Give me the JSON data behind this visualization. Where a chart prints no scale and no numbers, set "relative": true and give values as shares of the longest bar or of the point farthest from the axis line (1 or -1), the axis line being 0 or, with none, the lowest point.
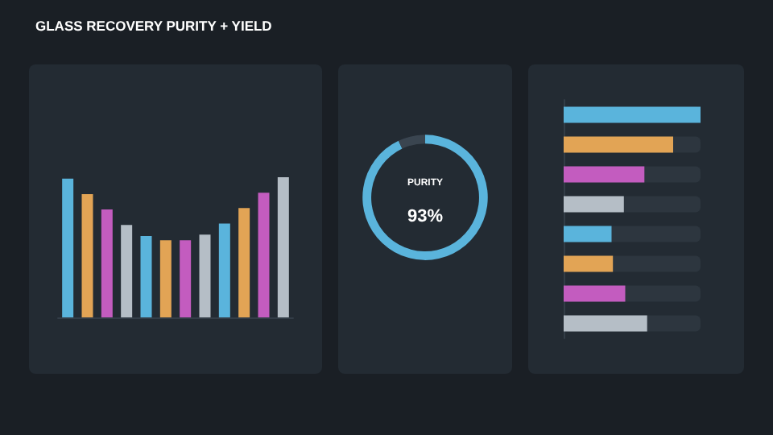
{
  "chart_data": [
    {
      "type": "bar",
      "title": "GLASS RECOVERY PURITY + YIELD",
      "relative": true,
      "categories": [
        null,
        null,
        null,
        null,
        null,
        null,
        null,
        null,
        null,
        null,
        null,
        null
      ],
      "values": [
        0.99,
        0.88,
        0.77,
        0.66,
        0.58,
        0.55,
        0.55,
        0.59,
        0.67,
        0.78,
        0.89,
        1
      ],
      "colors": [
        "#5ab4dc",
        "#e2a455",
        "#c35cbf",
        "#b5bec6",
        "#5ab4dc",
        "#e2a455",
        "#c35cbf",
        "#b5bec6",
        "#5ab4dc",
        "#e2a455",
        "#c35cbf",
        "#b5bec6"
      ]
    },
    {
      "type": "donut",
      "title": "PURITY",
      "categories": [
        null,
        null
      ],
      "values": [
        93,
        7
      ],
      "colors": [
        "#5ab4dc",
        "#3a4550"
      ],
      "value_labels": [
        "93%",
        null
      ]
    },
    {
      "type": "bar",
      "orientation": "horizontal",
      "relative": true,
      "categories": [
        null,
        null,
        null,
        null,
        null,
        null,
        null,
        null
      ],
      "values": [
        1,
        0.8,
        0.59,
        0.44,
        0.35,
        0.36,
        0.45,
        0.61
      ],
      "colors": [
        "#5ab4dc",
        "#e2a455",
        "#c35cbf",
        "#b5bec6",
        "#5ab4dc",
        "#e2a455",
        "#c35cbf",
        "#b5bec6"
      ]
    }
  ]
}
